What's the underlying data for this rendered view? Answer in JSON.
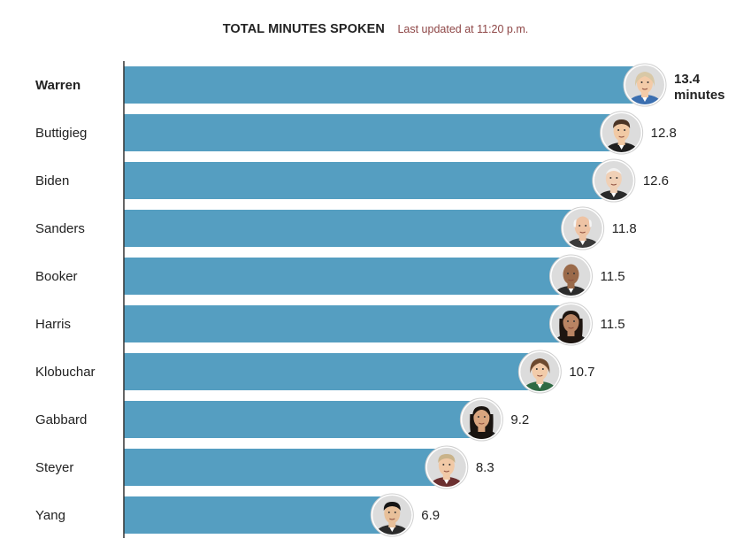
{
  "header": {
    "title": "TOTAL MINUTES SPOKEN",
    "subtitle": "Last updated at 11:20 p.m."
  },
  "colors": {
    "bar": "#559ec1",
    "axis": "#333333",
    "text": "#222222",
    "subtitle": "#8e4646",
    "avatar_bg": "#dcdcdc",
    "avatar_ring": "#ffffff"
  },
  "chart_data": {
    "type": "bar",
    "orientation": "horizontal",
    "title": "TOTAL MINUTES SPOKEN",
    "subtitle": "Last updated at 11:20 p.m.",
    "unit_label": "minutes",
    "categories": [
      "Warren",
      "Buttigieg",
      "Biden",
      "Sanders",
      "Booker",
      "Harris",
      "Klobuchar",
      "Gabbard",
      "Steyer",
      "Yang"
    ],
    "values": [
      13.4,
      12.8,
      12.6,
      11.8,
      11.5,
      11.5,
      10.7,
      9.2,
      8.3,
      6.9
    ],
    "value_labels": [
      "13.4",
      "12.8",
      "12.6",
      "11.8",
      "11.5",
      "11.5",
      "10.7",
      "9.2",
      "8.3",
      "6.9"
    ],
    "highlight": "Warren",
    "xlim": [
      0,
      13.4
    ],
    "grid": false,
    "legend": "none"
  },
  "avatars": [
    {
      "name": "Warren",
      "icon": "warren-portrait-icon",
      "skin": "#f3cba8",
      "hair": "#d8c8a6",
      "shirt": "#3b6fb0",
      "hairStyle": "bob"
    },
    {
      "name": "Buttigieg",
      "icon": "buttigieg-portrait-icon",
      "skin": "#f1c9a4",
      "hair": "#4a3425",
      "shirt": "#1f1f1f",
      "hairStyle": "short"
    },
    {
      "name": "Biden",
      "icon": "biden-portrait-icon",
      "skin": "#f0d0b6",
      "hair": "#f2f2f2",
      "shirt": "#2a2a2a",
      "hairStyle": "thin"
    },
    {
      "name": "Sanders",
      "icon": "sanders-portrait-icon",
      "skin": "#eec3a4",
      "hair": "#f4f4f4",
      "shirt": "#3a3a3a",
      "hairStyle": "bald-sides"
    },
    {
      "name": "Booker",
      "icon": "booker-portrait-icon",
      "skin": "#9a6a4a",
      "hair": "#9a6a4a",
      "shirt": "#2c2c2c",
      "hairStyle": "bald"
    },
    {
      "name": "Harris",
      "icon": "harris-portrait-icon",
      "skin": "#b98463",
      "hair": "#1e1510",
      "shirt": "#222222",
      "hairStyle": "long"
    },
    {
      "name": "Klobuchar",
      "icon": "klobuchar-portrait-icon",
      "skin": "#f2cba9",
      "hair": "#6d4a30",
      "shirt": "#2f6a44",
      "hairStyle": "bob"
    },
    {
      "name": "Gabbard",
      "icon": "gabbard-portrait-icon",
      "skin": "#d9a57f",
      "hair": "#1a1410",
      "shirt": "#222222",
      "hairStyle": "long"
    },
    {
      "name": "Steyer",
      "icon": "steyer-portrait-icon",
      "skin": "#f1c9a6",
      "hair": "#c9b38a",
      "shirt": "#6b2f2f",
      "hairStyle": "short"
    },
    {
      "name": "Yang",
      "icon": "yang-portrait-icon",
      "skin": "#e8c09a",
      "hair": "#151515",
      "shirt": "#2b2b2b",
      "hairStyle": "short"
    }
  ]
}
